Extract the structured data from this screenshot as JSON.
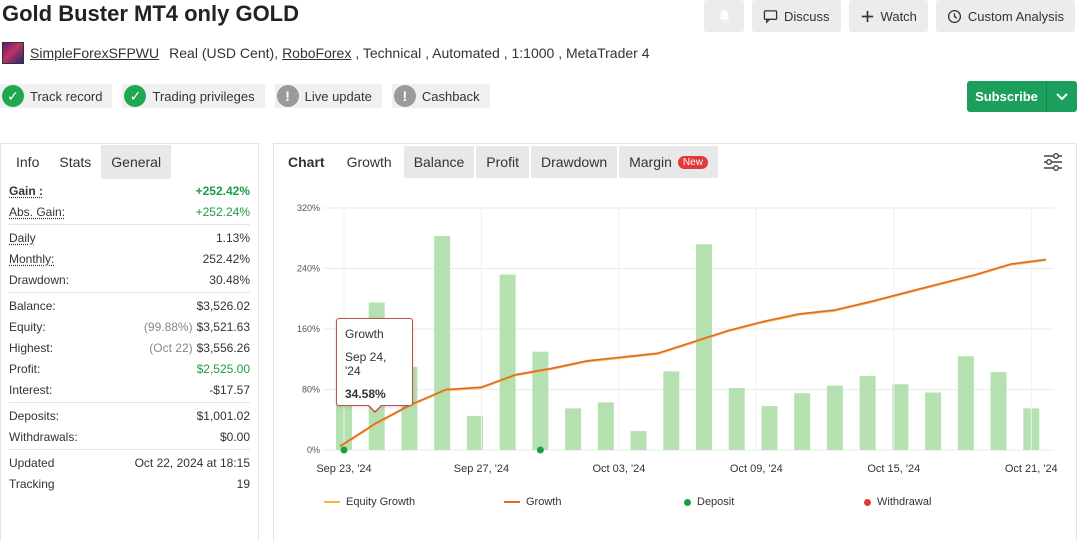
{
  "header": {
    "title": "Gold Buster MT4 only GOLD",
    "discuss_label": "Discuss",
    "watch_label": "Watch",
    "custom_label": "Custom Analysis"
  },
  "account": {
    "user": "SimpleForexSFPWU",
    "type": "Real (USD Cent),",
    "broker": "RoboForex",
    "details": ", Technical , Automated , 1:1000 , MetaTrader 4"
  },
  "badges": [
    {
      "label": "Track record",
      "status": "ok"
    },
    {
      "label": "Trading privileges",
      "status": "ok"
    },
    {
      "label": "Live update",
      "status": "warn"
    },
    {
      "label": "Cashback",
      "status": "warn"
    }
  ],
  "subscribe_label": "Subscribe",
  "left_tabs": [
    "Info",
    "Stats",
    "General"
  ],
  "stats": {
    "gain_label": "Gain :",
    "gain": "+252.42%",
    "abs_gain_label": "Abs. Gain:",
    "abs_gain": "+252.24%",
    "daily_label": "Daily",
    "daily": "1.13%",
    "monthly_label": "Monthly:",
    "monthly": "252.42%",
    "drawdown_label": "Drawdown:",
    "drawdown": "30.48%",
    "balance_label": "Balance:",
    "balance": "$3,526.02",
    "equity_label": "Equity:",
    "equity_note": "(99.88%)",
    "equity": "$3,521.63",
    "highest_label": "Highest:",
    "highest_note": "(Oct 22)",
    "highest": "$3,556.26",
    "profit_label": "Profit:",
    "profit": "$2,525.00",
    "interest_label": "Interest:",
    "interest": "-$17.57",
    "deposits_label": "Deposits:",
    "deposits": "$1,001.02",
    "withdrawals_label": "Withdrawals:",
    "withdrawals": "$0.00",
    "updated_label": "Updated",
    "updated": "Oct 22, 2024 at 18:15",
    "tracking_label": "Tracking",
    "tracking": "19"
  },
  "chart_tabs": {
    "label": "Chart",
    "tabs": [
      "Growth",
      "Balance",
      "Profit",
      "Drawdown",
      "Margin"
    ],
    "new_tag": "New"
  },
  "tooltip": {
    "series": "Growth",
    "date": "Sep 24, '24",
    "value": "34.58%"
  },
  "chart_data": {
    "type": "bar",
    "y_ticks": [
      "0%",
      "80%",
      "160%",
      "240%",
      "320%"
    ],
    "ylim": [
      0,
      320
    ],
    "x_ticks": [
      "Sep 23, '24",
      "Sep 27, '24",
      "Oct 03, '24",
      "Oct 09, '24",
      "Oct 15, '24",
      "Oct 21, '24"
    ],
    "bars": [
      140,
      195,
      110,
      283,
      45,
      232,
      130,
      55,
      63,
      25,
      104,
      272,
      82,
      58,
      75,
      85,
      98,
      87,
      76,
      124,
      103,
      55
    ],
    "growth": [
      5,
      35,
      60,
      80,
      83,
      100,
      108,
      118,
      123,
      128,
      143,
      158,
      170,
      180,
      185,
      196,
      208,
      220,
      232,
      246,
      252
    ],
    "deposit_bar_indices": [
      0,
      6
    ],
    "colors": {
      "bar": "#b5e0b0",
      "growth": "#e06a2a",
      "equity": "#f2b640",
      "deposit": "#1a9e45",
      "withdrawal": "#e03a3a"
    },
    "legend": [
      "Equity Growth",
      "Growth",
      "Deposit",
      "Withdrawal"
    ]
  }
}
